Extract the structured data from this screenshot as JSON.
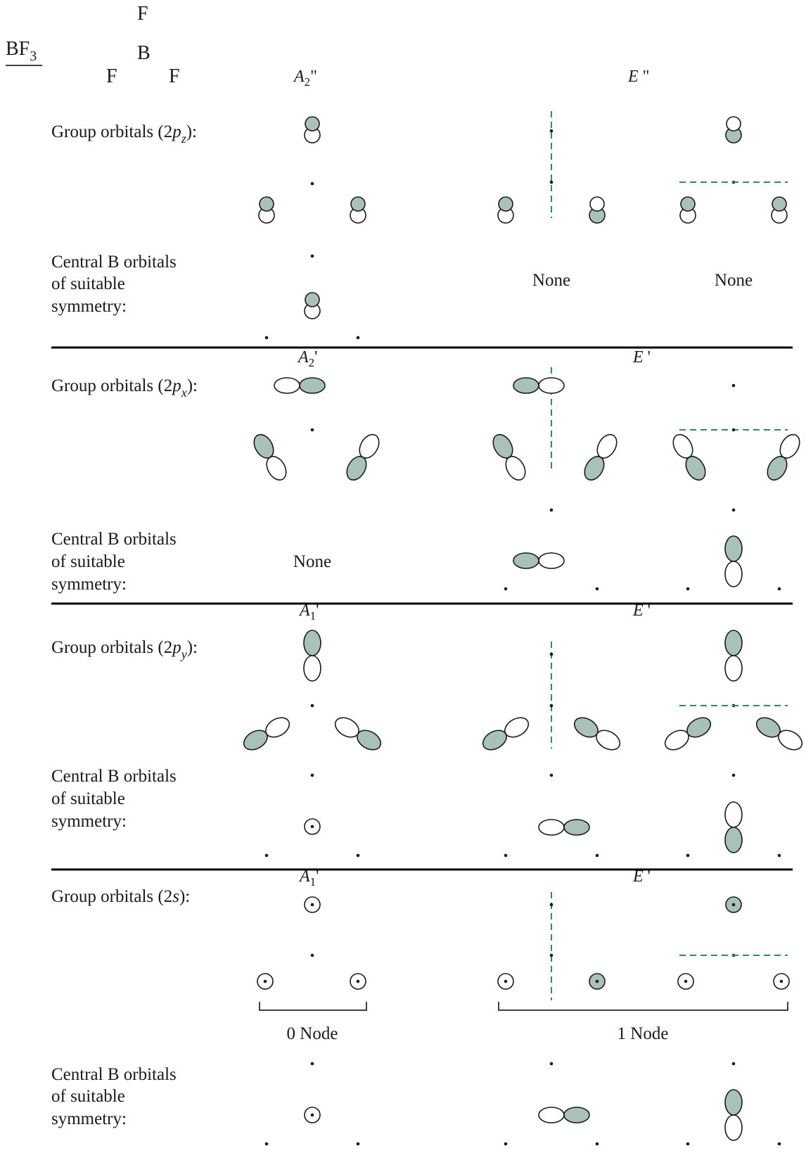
{
  "molecule": {
    "formula": "BF",
    "subscript": "3",
    "atom_top": "F",
    "atom_center": "B",
    "atom_left": "F",
    "atom_right": "F"
  },
  "colors": {
    "shaded": "#a9c2b8",
    "outline": "#1a1a1a",
    "node_line": "#2e8b68",
    "rule": "#000000"
  },
  "labels": {
    "group_pz": "Group orbitals (2",
    "group_pz_p": "p",
    "group_pz_sub": "z",
    "group_pz_end": "):",
    "group_px": "Group orbitals (2",
    "group_px_p": "p",
    "group_px_sub": "x",
    "group_px_end": "):",
    "group_py": "Group orbitals (2",
    "group_py_p": "p",
    "group_py_sub": "y",
    "group_py_end": "):",
    "group_s": "Group orbitals (2",
    "group_s_s": "s",
    "group_s_end": "):",
    "central_line1": "Central B orbitals",
    "central_line2": "of suitable",
    "central_line3": "symmetry:",
    "none": "None"
  },
  "symmetry": {
    "pz_a": "A",
    "pz_a_sub": "2",
    "pz_a_prime": "\"",
    "pz_e": "E",
    "pz_e_prime": " \"",
    "px_a": "A",
    "px_a_sub": "2",
    "px_a_prime": "'",
    "px_e": "E",
    "px_e_prime": " '",
    "py_a": "A",
    "py_a_sub": "1",
    "py_a_prime": "'",
    "py_e": "E",
    "py_e_prime": " '",
    "s_a": "A",
    "s_a_sub": "1",
    "s_a_prime": "'",
    "s_e": "E",
    "s_e_prime": " '"
  },
  "nodes": {
    "zero": "0 Node",
    "one": "1 Node"
  }
}
